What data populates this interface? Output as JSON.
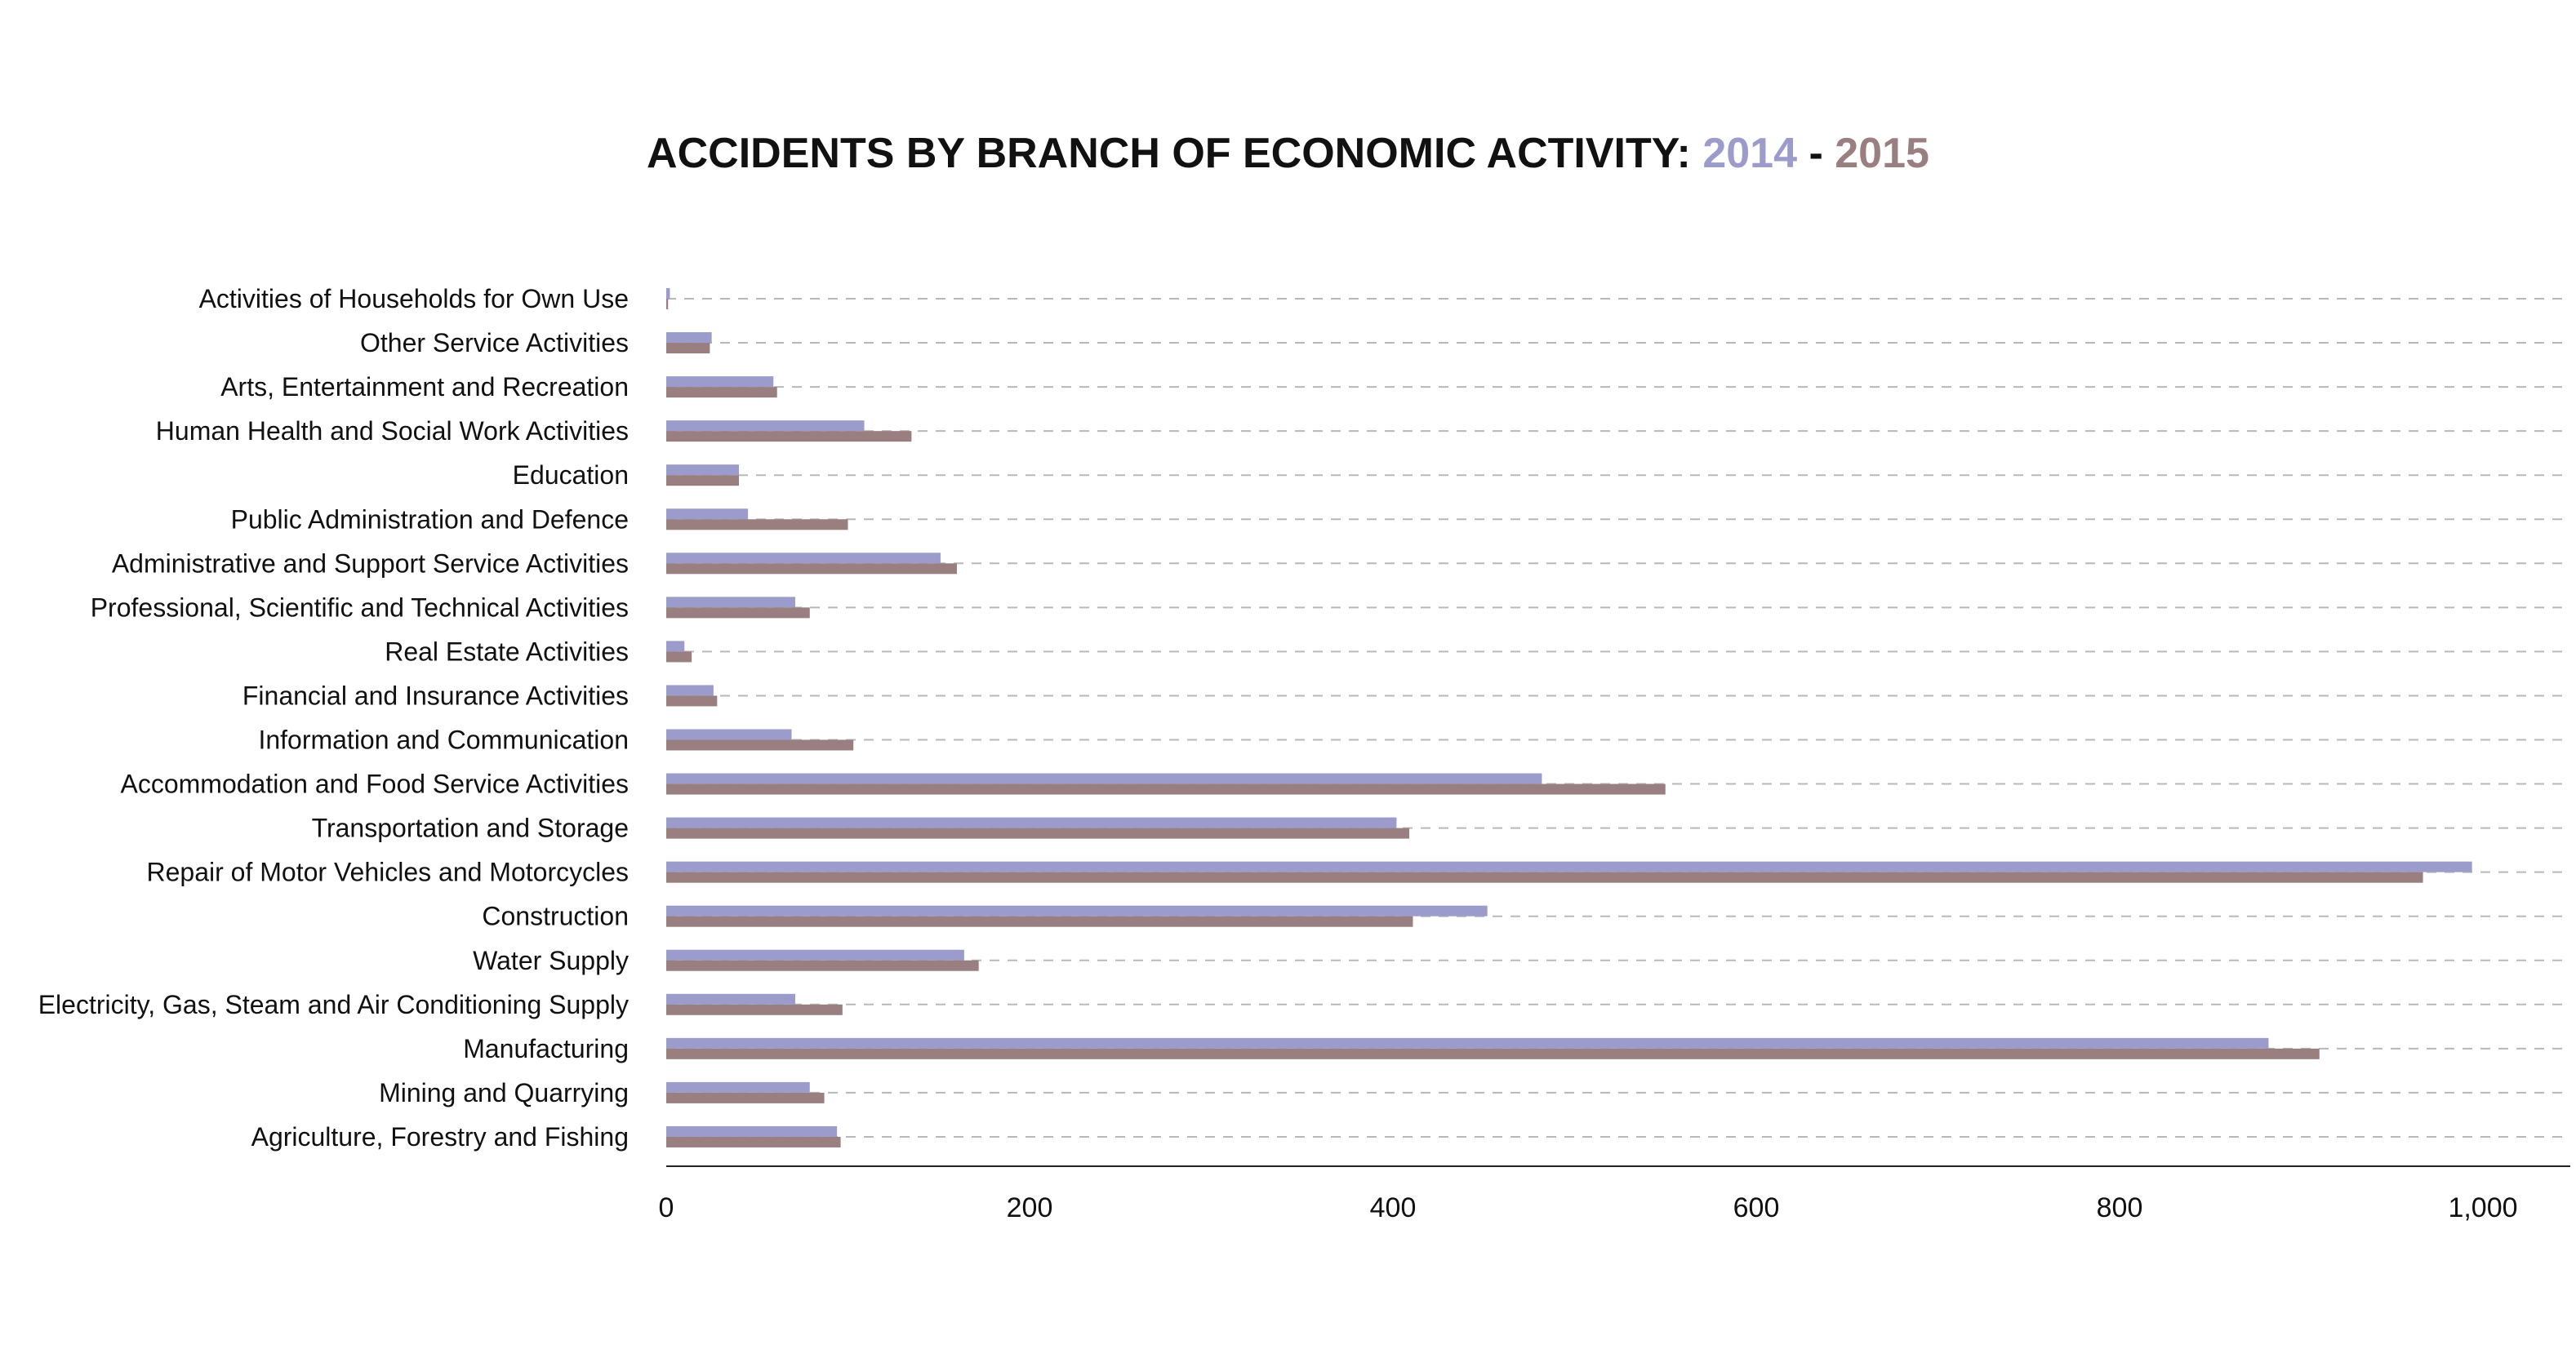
{
  "chart_data": {
    "type": "bar",
    "orientation": "horizontal",
    "title": "ACCIDENTS BY BRANCH OF ECONOMIC ACTIVITY:",
    "title_years": [
      "2014",
      "2015"
    ],
    "title_separator": "-",
    "categories": [
      "Activities of Households for Own Use",
      "Other Service Activities",
      "Arts, Entertainment and Recreation",
      "Human Health and Social Work Activities",
      "Education",
      "Public Administration and Defence",
      "Administrative and Support Service Activities",
      "Professional, Scientific and Technical Activities",
      "Real Estate Activities",
      "Financial and Insurance Activities",
      "Information and Communication",
      "Accommodation and Food Service Activities",
      "Transportation and Storage",
      "Repair of Motor Vehicles and Motorcycles",
      "Construction",
      "Water Supply",
      "Electricity, Gas, Steam and Air Conditioning Supply",
      "Manufacturing",
      "Mining and Quarrying",
      "Agriculture, Forestry and Fishing"
    ],
    "series": [
      {
        "name": "2014",
        "color": "#9c9ccc",
        "values": [
          2,
          25,
          59,
          109,
          40,
          45,
          151,
          71,
          10,
          26,
          69,
          482,
          402,
          994,
          452,
          164,
          71,
          882,
          79,
          94
        ]
      },
      {
        "name": "2015",
        "color": "#9a7f80",
        "values": [
          1,
          24,
          61,
          135,
          40,
          100,
          160,
          79,
          14,
          28,
          103,
          550,
          409,
          967,
          411,
          172,
          97,
          910,
          87,
          96
        ]
      }
    ],
    "x_ticks": [
      "0",
      "200",
      "400",
      "600",
      "800",
      "1,000"
    ],
    "x_tick_values": [
      0,
      200,
      400,
      600,
      800,
      1000
    ],
    "xlim": [
      0,
      1040
    ],
    "grid": "dashed horizontal",
    "legend": "none"
  }
}
